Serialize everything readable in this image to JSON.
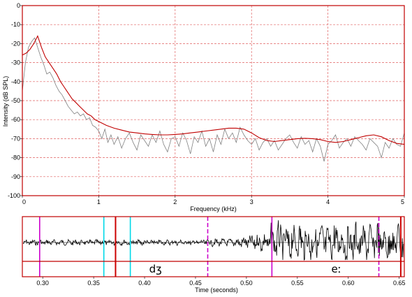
{
  "chart_data": [
    {
      "type": "line",
      "name": "spectrum",
      "xlabel": "Frequency (kHz)",
      "ylabel": "Intensity (dB SPL)",
      "xlim": [
        0,
        5
      ],
      "ylim": [
        -100,
        0
      ],
      "x_ticks": [
        "0",
        "1",
        "2",
        "3",
        "4",
        "5"
      ],
      "y_ticks": [
        "0",
        "-10",
        "-20",
        "-30",
        "-40",
        "-50",
        "-60",
        "-70",
        "-80",
        "-90",
        "-100"
      ],
      "x_tick_values": [
        0,
        1,
        2,
        3,
        4,
        5
      ],
      "y_tick_values": [
        0,
        -10,
        -20,
        -30,
        -40,
        -50,
        -60,
        -70,
        -80,
        -90,
        -100
      ],
      "grid": true,
      "series": [
        {
          "color": "#808080",
          "x": [
            0,
            0.04,
            0.08,
            0.12,
            0.16,
            0.2,
            0.24,
            0.28,
            0.32,
            0.36,
            0.4,
            0.44,
            0.48,
            0.52,
            0.56,
            0.6,
            0.64,
            0.68,
            0.72,
            0.76,
            0.8,
            0.84,
            0.88,
            0.92,
            0.96,
            1.0,
            1.04,
            1.08,
            1.12,
            1.16,
            1.2,
            1.25,
            1.3,
            1.35,
            1.4,
            1.45,
            1.5,
            1.55,
            1.6,
            1.65,
            1.7,
            1.75,
            1.8,
            1.85,
            1.9,
            1.95,
            2.0,
            2.05,
            2.1,
            2.15,
            2.2,
            2.25,
            2.3,
            2.35,
            2.4,
            2.45,
            2.5,
            2.55,
            2.6,
            2.65,
            2.7,
            2.75,
            2.8,
            2.85,
            2.9,
            2.95,
            3.0,
            3.05,
            3.1,
            3.15,
            3.2,
            3.25,
            3.3,
            3.35,
            3.4,
            3.45,
            3.5,
            3.55,
            3.6,
            3.65,
            3.7,
            3.75,
            3.8,
            3.85,
            3.9,
            3.95,
            4.0,
            4.05,
            4.1,
            4.15,
            4.2,
            4.25,
            4.3,
            4.35,
            4.4,
            4.45,
            4.5,
            4.55,
            4.6,
            4.65,
            4.7,
            4.75,
            4.8,
            4.85,
            4.9,
            4.95,
            5.0
          ],
          "y": [
            -45,
            -30,
            -22,
            -19,
            -17,
            -22,
            -27,
            -31,
            -36,
            -35,
            -38,
            -42,
            -45,
            -47,
            -50,
            -53,
            -55,
            -57,
            -56,
            -58,
            -57,
            -60,
            -59,
            -63,
            -64,
            -66,
            -70,
            -65,
            -72,
            -68,
            -73,
            -69,
            -75,
            -70,
            -67,
            -72,
            -76,
            -68,
            -71,
            -74,
            -68,
            -72,
            -66,
            -73,
            -77,
            -70,
            -69,
            -74,
            -67,
            -71,
            -78,
            -69,
            -72,
            -66,
            -74,
            -70,
            -77,
            -68,
            -73,
            -65,
            -70,
            -67,
            -72,
            -64,
            -68,
            -71,
            -73,
            -70,
            -76,
            -72,
            -70,
            -74,
            -71,
            -76,
            -73,
            -70,
            -68,
            -72,
            -75,
            -69,
            -73,
            -71,
            -77,
            -70,
            -74,
            -82,
            -73,
            -71,
            -68,
            -75,
            -72,
            -70,
            -74,
            -69,
            -71,
            -73,
            -76,
            -70,
            -72,
            -74,
            -80,
            -72,
            -75,
            -70,
            -73,
            -74,
            -67
          ]
        },
        {
          "color": "#c00000",
          "x": [
            0,
            0.05,
            0.1,
            0.15,
            0.2,
            0.25,
            0.3,
            0.35,
            0.4,
            0.45,
            0.5,
            0.55,
            0.6,
            0.65,
            0.7,
            0.75,
            0.8,
            0.85,
            0.9,
            0.95,
            1.0,
            1.1,
            1.2,
            1.3,
            1.4,
            1.5,
            1.6,
            1.7,
            1.8,
            1.9,
            2.0,
            2.1,
            2.2,
            2.3,
            2.4,
            2.5,
            2.6,
            2.7,
            2.8,
            2.9,
            3.0,
            3.1,
            3.2,
            3.3,
            3.4,
            3.5,
            3.6,
            3.7,
            3.8,
            3.9,
            4.0,
            4.1,
            4.2,
            4.3,
            4.4,
            4.5,
            4.6,
            4.7,
            4.8,
            4.9,
            5.0
          ],
          "y": [
            -26,
            -25,
            -23,
            -20,
            -16,
            -22,
            -27,
            -30,
            -33,
            -36,
            -40,
            -43,
            -46,
            -49,
            -51,
            -53,
            -55,
            -57,
            -58,
            -60,
            -61,
            -63,
            -64.5,
            -65.5,
            -66.5,
            -67,
            -67.5,
            -67.8,
            -68,
            -68,
            -67.8,
            -67.5,
            -67,
            -66.5,
            -66,
            -65.5,
            -65,
            -64.5,
            -64.5,
            -65,
            -67,
            -69.5,
            -71,
            -71.5,
            -71,
            -70.5,
            -70,
            -69.8,
            -70,
            -70.5,
            -71.5,
            -72,
            -71.5,
            -70.5,
            -69.5,
            -68.5,
            -68,
            -69,
            -71,
            -72.5,
            -73
          ]
        }
      ]
    },
    {
      "type": "line",
      "name": "waveform",
      "xlabel": "Time (seconds)",
      "xlim": [
        0.28,
        0.655
      ],
      "x_ticks": [
        "0.30",
        "0.35",
        "0.40",
        "0.45",
        "0.50",
        "0.55",
        "0.60",
        "0.65"
      ],
      "x_tick_values": [
        0.3,
        0.35,
        0.4,
        0.45,
        0.5,
        0.55,
        0.6,
        0.65
      ],
      "segments": [
        {
          "label": "dʒ",
          "start": 0.2965,
          "end": 0.525
        },
        {
          "label": "eː",
          "start": 0.525,
          "end": 0.6515
        }
      ],
      "markers": [
        {
          "t": 0.297,
          "color": "#cc00cc",
          "style": "solid"
        },
        {
          "t": 0.36,
          "color": "#00d8e8",
          "style": "solid"
        },
        {
          "t": 0.3715,
          "color": "#cc0000",
          "style": "solid"
        },
        {
          "t": 0.386,
          "color": "#00d8e8",
          "style": "solid"
        },
        {
          "t": 0.462,
          "color": "#cc00cc",
          "style": "dashed"
        },
        {
          "t": 0.525,
          "color": "#cc00cc",
          "style": "solid"
        },
        {
          "t": 0.63,
          "color": "#cc00cc",
          "style": "dashed"
        },
        {
          "t": 0.6515,
          "color": "#cc0000",
          "style": "solid"
        }
      ]
    }
  ]
}
